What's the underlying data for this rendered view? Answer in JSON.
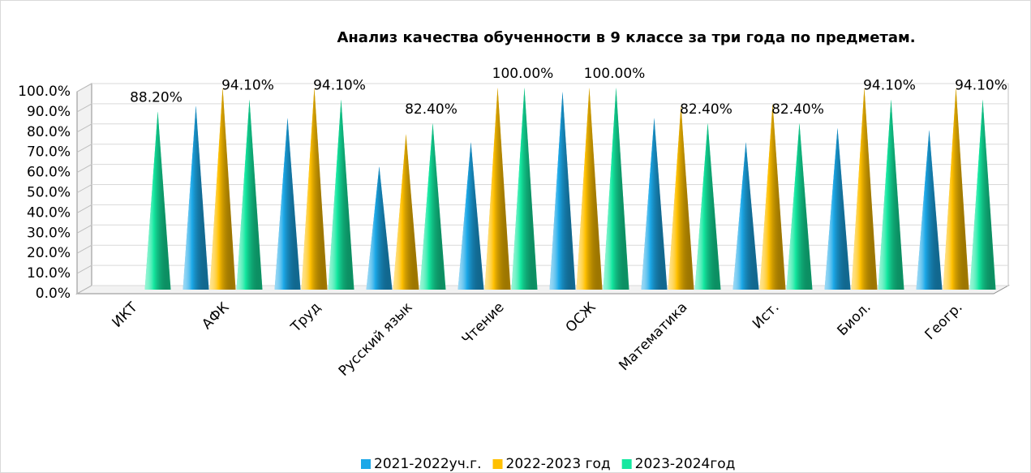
{
  "chart_data": {
    "type": "cone",
    "title": "Анализ качества обученности в 9 классе за три  года по предметам.",
    "categories": [
      "ИКТ",
      "АФК",
      "Труд",
      "Русский язык",
      "Чтение",
      "ОСЖ",
      "Математика",
      "Ист.",
      "Биол.",
      "Геогр."
    ],
    "series": [
      {
        "name": "2021-2022уч.г.",
        "color": "#1ca8e8",
        "values": [
          null,
          91,
          85,
          61,
          73,
          98,
          85,
          73,
          80,
          79
        ]
      },
      {
        "name": "2022-2023 год",
        "color": "#ffc000",
        "values": [
          null,
          100,
          100,
          77,
          100,
          100,
          91,
          92,
          100,
          100
        ]
      },
      {
        "name": "2023-2024год",
        "color": "#14e8a0",
        "values": [
          88.2,
          94.1,
          94.1,
          82.4,
          100,
          100,
          82.4,
          82.4,
          94.1,
          94.1
        ],
        "value_labels": [
          "88.20%",
          "94.10%",
          "94.10%",
          "82.40%",
          "100.00%",
          "100.00%",
          "82.40%",
          "82.40%",
          "94.10%",
          "94.10%"
        ]
      }
    ],
    "ylim": [
      0,
      100
    ],
    "yticks": [
      {
        "value": 0,
        "label": "0.0%"
      },
      {
        "value": 10,
        "label": "10.0%"
      },
      {
        "value": 20,
        "label": "20.0%"
      },
      {
        "value": 30,
        "label": "30.0%"
      },
      {
        "value": 40,
        "label": "40.0%"
      },
      {
        "value": 50,
        "label": "50.0%"
      },
      {
        "value": 60,
        "label": "60.0%"
      },
      {
        "value": 70,
        "label": "70.0%"
      },
      {
        "value": 80,
        "label": "80.0%"
      },
      {
        "value": 90,
        "label": "90.0%"
      },
      {
        "value": 100,
        "label": "100.0%"
      }
    ],
    "legend": "bottom"
  }
}
